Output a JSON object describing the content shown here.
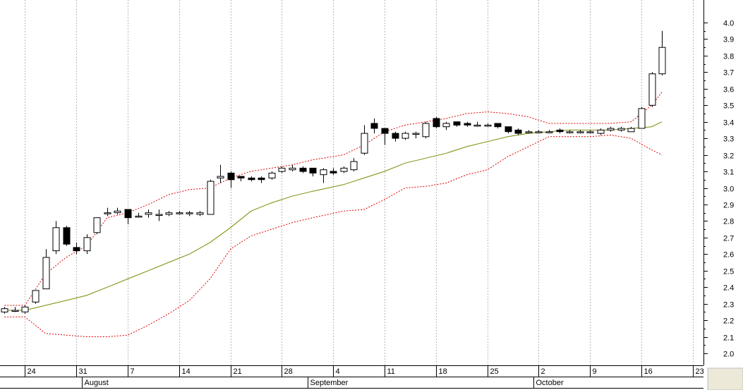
{
  "chart_data": {
    "type": "candlestick",
    "title": "",
    "xlabel": "",
    "ylabel": "",
    "ylim": [
      1.9,
      4.07
    ],
    "y_ticks": [
      "4.0",
      "3.9",
      "3.8",
      "3.7",
      "3.6",
      "3.5",
      "3.4",
      "3.3",
      "3.2",
      "3.1",
      "3.0",
      "2.9",
      "2.8",
      "2.7",
      "2.6",
      "2.5",
      "2.4",
      "2.3",
      "2.2",
      "2.1",
      "2.0"
    ],
    "x_day_labels": [
      "24",
      "31",
      "7",
      "14",
      "21",
      "28",
      "4",
      "11",
      "18",
      "25",
      "2",
      "9",
      "16",
      "23"
    ],
    "x_month_labels": [
      "August",
      "September",
      "October"
    ],
    "grid": true,
    "colors": {
      "candle_border": "#000000",
      "bollinger": "#e00000",
      "moving_average": "#7a8a00",
      "grid": "#b8b8b8",
      "axis_panel": "#ece9d8"
    },
    "candles": [
      {
        "date": "Jul 22",
        "o": 2.25,
        "h": 2.28,
        "l": 2.24,
        "c": 2.27
      },
      {
        "date": "Jul 23",
        "o": 2.26,
        "h": 2.28,
        "l": 2.25,
        "c": 2.26
      },
      {
        "date": "Jul 24",
        "o": 2.25,
        "h": 2.29,
        "l": 2.24,
        "c": 2.28
      },
      {
        "date": "Jul 25",
        "o": 2.31,
        "h": 2.38,
        "l": 2.3,
        "c": 2.38
      },
      {
        "date": "Jul 28",
        "o": 2.39,
        "h": 2.63,
        "l": 2.39,
        "c": 2.58
      },
      {
        "date": "Jul 29",
        "o": 2.62,
        "h": 2.8,
        "l": 2.6,
        "c": 2.76
      },
      {
        "date": "Jul 30",
        "o": 2.76,
        "h": 2.77,
        "l": 2.65,
        "c": 2.66
      },
      {
        "date": "Jul 31",
        "o": 2.64,
        "h": 2.67,
        "l": 2.6,
        "c": 2.62
      },
      {
        "date": "Aug 1",
        "o": 2.62,
        "h": 2.72,
        "l": 2.6,
        "c": 2.7
      },
      {
        "date": "Aug 4",
        "o": 2.73,
        "h": 2.82,
        "l": 2.72,
        "c": 2.82
      },
      {
        "date": "Aug 5",
        "o": 2.85,
        "h": 2.88,
        "l": 2.83,
        "c": 2.85
      },
      {
        "date": "Aug 6",
        "o": 2.85,
        "h": 2.88,
        "l": 2.84,
        "c": 2.86
      },
      {
        "date": "Aug 7",
        "o": 2.87,
        "h": 2.87,
        "l": 2.78,
        "c": 2.82
      },
      {
        "date": "Aug 8",
        "o": 2.83,
        "h": 2.85,
        "l": 2.82,
        "c": 2.83
      },
      {
        "date": "Aug 11",
        "o": 2.84,
        "h": 2.87,
        "l": 2.82,
        "c": 2.85
      },
      {
        "date": "Aug 12",
        "o": 2.84,
        "h": 2.87,
        "l": 2.8,
        "c": 2.84
      },
      {
        "date": "Aug 13",
        "o": 2.84,
        "h": 2.86,
        "l": 2.83,
        "c": 2.85
      },
      {
        "date": "Aug 14",
        "o": 2.85,
        "h": 2.86,
        "l": 2.84,
        "c": 2.85
      },
      {
        "date": "Aug 15",
        "o": 2.85,
        "h": 2.86,
        "l": 2.83,
        "c": 2.85
      },
      {
        "date": "Aug 18",
        "o": 2.84,
        "h": 2.86,
        "l": 2.83,
        "c": 2.85
      },
      {
        "date": "Aug 19",
        "o": 2.84,
        "h": 3.05,
        "l": 2.84,
        "c": 3.04
      },
      {
        "date": "Aug 20",
        "o": 3.06,
        "h": 3.14,
        "l": 3.03,
        "c": 3.07
      },
      {
        "date": "Aug 21",
        "o": 3.09,
        "h": 3.1,
        "l": 3.0,
        "c": 3.05
      },
      {
        "date": "Aug 22",
        "o": 3.07,
        "h": 3.07,
        "l": 3.04,
        "c": 3.06
      },
      {
        "date": "Aug 25",
        "o": 3.06,
        "h": 3.07,
        "l": 3.04,
        "c": 3.05
      },
      {
        "date": "Aug 26",
        "o": 3.06,
        "h": 3.07,
        "l": 3.03,
        "c": 3.05
      },
      {
        "date": "Aug 27",
        "o": 3.06,
        "h": 3.1,
        "l": 3.05,
        "c": 3.09
      },
      {
        "date": "Aug 28",
        "o": 3.1,
        "h": 3.13,
        "l": 3.09,
        "c": 3.12
      },
      {
        "date": "Aug 29",
        "o": 3.11,
        "h": 3.14,
        "l": 3.1,
        "c": 3.12
      },
      {
        "date": "Sep 1",
        "o": 3.12,
        "h": 3.13,
        "l": 3.09,
        "c": 3.1
      },
      {
        "date": "Sep 2",
        "o": 3.12,
        "h": 3.12,
        "l": 3.07,
        "c": 3.09
      },
      {
        "date": "Sep 3",
        "o": 3.08,
        "h": 3.12,
        "l": 3.03,
        "c": 3.11
      },
      {
        "date": "Sep 4",
        "o": 3.1,
        "h": 3.12,
        "l": 3.08,
        "c": 3.09
      },
      {
        "date": "Sep 5",
        "o": 3.1,
        "h": 3.13,
        "l": 3.09,
        "c": 3.12
      },
      {
        "date": "Sep 8",
        "o": 3.11,
        "h": 3.18,
        "l": 3.1,
        "c": 3.16
      },
      {
        "date": "Sep 9",
        "o": 3.21,
        "h": 3.38,
        "l": 3.2,
        "c": 3.33
      },
      {
        "date": "Sep 10",
        "o": 3.39,
        "h": 3.42,
        "l": 3.33,
        "c": 3.36
      },
      {
        "date": "Sep 11",
        "o": 3.36,
        "h": 3.36,
        "l": 3.26,
        "c": 3.33
      },
      {
        "date": "Sep 12",
        "o": 3.33,
        "h": 3.34,
        "l": 3.28,
        "c": 3.3
      },
      {
        "date": "Sep 15",
        "o": 3.3,
        "h": 3.34,
        "l": 3.29,
        "c": 3.33
      },
      {
        "date": "Sep 16",
        "o": 3.33,
        "h": 3.34,
        "l": 3.3,
        "c": 3.33
      },
      {
        "date": "Sep 17",
        "o": 3.31,
        "h": 3.4,
        "l": 3.3,
        "c": 3.39
      },
      {
        "date": "Sep 18",
        "o": 3.42,
        "h": 3.43,
        "l": 3.36,
        "c": 3.37
      },
      {
        "date": "Sep 19",
        "o": 3.37,
        "h": 3.4,
        "l": 3.35,
        "c": 3.39
      },
      {
        "date": "Sep 22",
        "o": 3.4,
        "h": 3.4,
        "l": 3.37,
        "c": 3.38
      },
      {
        "date": "Sep 23",
        "o": 3.39,
        "h": 3.4,
        "l": 3.37,
        "c": 3.38
      },
      {
        "date": "Sep 24",
        "o": 3.38,
        "h": 3.4,
        "l": 3.37,
        "c": 3.38
      },
      {
        "date": "Sep 25",
        "o": 3.38,
        "h": 3.39,
        "l": 3.37,
        "c": 3.38
      },
      {
        "date": "Sep 26",
        "o": 3.39,
        "h": 3.39,
        "l": 3.36,
        "c": 3.37
      },
      {
        "date": "Sep 29",
        "o": 3.37,
        "h": 3.37,
        "l": 3.33,
        "c": 3.34
      },
      {
        "date": "Sep 30",
        "o": 3.35,
        "h": 3.36,
        "l": 3.32,
        "c": 3.33
      },
      {
        "date": "Oct 1",
        "o": 3.34,
        "h": 3.35,
        "l": 3.33,
        "c": 3.34
      },
      {
        "date": "Oct 2",
        "o": 3.34,
        "h": 3.35,
        "l": 3.33,
        "c": 3.34
      },
      {
        "date": "Oct 3",
        "o": 3.34,
        "h": 3.35,
        "l": 3.33,
        "c": 3.34
      },
      {
        "date": "Oct 6",
        "o": 3.35,
        "h": 3.36,
        "l": 3.33,
        "c": 3.34
      },
      {
        "date": "Oct 7",
        "o": 3.34,
        "h": 3.35,
        "l": 3.33,
        "c": 3.34
      },
      {
        "date": "Oct 8",
        "o": 3.34,
        "h": 3.35,
        "l": 3.33,
        "c": 3.34
      },
      {
        "date": "Oct 9",
        "o": 3.34,
        "h": 3.35,
        "l": 3.33,
        "c": 3.34
      },
      {
        "date": "Oct 10",
        "o": 3.33,
        "h": 3.36,
        "l": 3.32,
        "c": 3.35
      },
      {
        "date": "Oct 13",
        "o": 3.35,
        "h": 3.37,
        "l": 3.34,
        "c": 3.36
      },
      {
        "date": "Oct 14",
        "o": 3.35,
        "h": 3.37,
        "l": 3.34,
        "c": 3.36
      },
      {
        "date": "Oct 15",
        "o": 3.34,
        "h": 3.37,
        "l": 3.34,
        "c": 3.36
      },
      {
        "date": "Oct 16",
        "o": 3.36,
        "h": 3.49,
        "l": 3.36,
        "c": 3.48
      },
      {
        "date": "Oct 17",
        "o": 3.5,
        "h": 3.7,
        "l": 3.49,
        "c": 3.69
      },
      {
        "date": "Oct 20",
        "o": 3.69,
        "h": 3.95,
        "l": 3.68,
        "c": 3.85
      }
    ],
    "moving_average": [
      {
        "date": "Jul 22",
        "v": 2.26
      },
      {
        "date": "Jul 24",
        "v": 2.26
      },
      {
        "date": "Jul 28",
        "v": 2.29
      },
      {
        "date": "Jul 30",
        "v": 2.32
      },
      {
        "date": "Aug 1",
        "v": 2.35
      },
      {
        "date": "Aug 5",
        "v": 2.4
      },
      {
        "date": "Aug 7",
        "v": 2.45
      },
      {
        "date": "Aug 11",
        "v": 2.5
      },
      {
        "date": "Aug 13",
        "v": 2.55
      },
      {
        "date": "Aug 15",
        "v": 2.6
      },
      {
        "date": "Aug 19",
        "v": 2.67
      },
      {
        "date": "Aug 21",
        "v": 2.76
      },
      {
        "date": "Aug 25",
        "v": 2.86
      },
      {
        "date": "Aug 27",
        "v": 2.91
      },
      {
        "date": "Aug 29",
        "v": 2.95
      },
      {
        "date": "Sep 2",
        "v": 2.98
      },
      {
        "date": "Sep 5",
        "v": 3.02
      },
      {
        "date": "Sep 9",
        "v": 3.06
      },
      {
        "date": "Sep 11",
        "v": 3.1
      },
      {
        "date": "Sep 15",
        "v": 3.15
      },
      {
        "date": "Sep 17",
        "v": 3.18
      },
      {
        "date": "Sep 19",
        "v": 3.21
      },
      {
        "date": "Sep 23",
        "v": 3.25
      },
      {
        "date": "Sep 25",
        "v": 3.28
      },
      {
        "date": "Sep 29",
        "v": 3.31
      },
      {
        "date": "Oct 1",
        "v": 3.33
      },
      {
        "date": "Oct 3",
        "v": 3.34
      },
      {
        "date": "Oct 7",
        "v": 3.35
      },
      {
        "date": "Oct 9",
        "v": 3.35
      },
      {
        "date": "Oct 13",
        "v": 3.35
      },
      {
        "date": "Oct 15",
        "v": 3.36
      },
      {
        "date": "Oct 17",
        "v": 3.37
      },
      {
        "date": "Oct 20",
        "v": 3.4
      }
    ],
    "bollinger_upper": [
      {
        "date": "Jul 22",
        "v": 2.29
      },
      {
        "date": "Jul 24",
        "v": 2.29
      },
      {
        "date": "Jul 28",
        "v": 2.48
      },
      {
        "date": "Jul 30",
        "v": 2.58
      },
      {
        "date": "Aug 1",
        "v": 2.65
      },
      {
        "date": "Aug 5",
        "v": 2.82
      },
      {
        "date": "Aug 7",
        "v": 2.85
      },
      {
        "date": "Aug 11",
        "v": 2.9
      },
      {
        "date": "Aug 13",
        "v": 2.96
      },
      {
        "date": "Aug 15",
        "v": 2.99
      },
      {
        "date": "Aug 19",
        "v": 3.0
      },
      {
        "date": "Aug 21",
        "v": 3.06
      },
      {
        "date": "Aug 25",
        "v": 3.1
      },
      {
        "date": "Aug 27",
        "v": 3.12
      },
      {
        "date": "Aug 29",
        "v": 3.14
      },
      {
        "date": "Sep 2",
        "v": 3.17
      },
      {
        "date": "Sep 5",
        "v": 3.2
      },
      {
        "date": "Sep 9",
        "v": 3.26
      },
      {
        "date": "Sep 11",
        "v": 3.34
      },
      {
        "date": "Sep 15",
        "v": 3.38
      },
      {
        "date": "Sep 17",
        "v": 3.4
      },
      {
        "date": "Sep 19",
        "v": 3.42
      },
      {
        "date": "Sep 23",
        "v": 3.45
      },
      {
        "date": "Sep 25",
        "v": 3.46
      },
      {
        "date": "Sep 29",
        "v": 3.45
      },
      {
        "date": "Oct 1",
        "v": 3.43
      },
      {
        "date": "Oct 3",
        "v": 3.39
      },
      {
        "date": "Oct 7",
        "v": 3.39
      },
      {
        "date": "Oct 9",
        "v": 3.39
      },
      {
        "date": "Oct 13",
        "v": 3.39
      },
      {
        "date": "Oct 15",
        "v": 3.4
      },
      {
        "date": "Oct 17",
        "v": 3.5
      },
      {
        "date": "Oct 20",
        "v": 3.58
      }
    ],
    "bollinger_lower": [
      {
        "date": "Jul 22",
        "v": 2.22
      },
      {
        "date": "Jul 24",
        "v": 2.22
      },
      {
        "date": "Jul 28",
        "v": 2.12
      },
      {
        "date": "Jul 30",
        "v": 2.11
      },
      {
        "date": "Aug 1",
        "v": 2.1
      },
      {
        "date": "Aug 5",
        "v": 2.1
      },
      {
        "date": "Aug 7",
        "v": 2.11
      },
      {
        "date": "Aug 11",
        "v": 2.17
      },
      {
        "date": "Aug 13",
        "v": 2.24
      },
      {
        "date": "Aug 15",
        "v": 2.32
      },
      {
        "date": "Aug 19",
        "v": 2.45
      },
      {
        "date": "Aug 21",
        "v": 2.63
      },
      {
        "date": "Aug 25",
        "v": 2.71
      },
      {
        "date": "Aug 27",
        "v": 2.75
      },
      {
        "date": "Aug 29",
        "v": 2.79
      },
      {
        "date": "Sep 2",
        "v": 2.82
      },
      {
        "date": "Sep 5",
        "v": 2.86
      },
      {
        "date": "Sep 9",
        "v": 2.87
      },
      {
        "date": "Sep 11",
        "v": 2.93
      },
      {
        "date": "Sep 15",
        "v": 3.0
      },
      {
        "date": "Sep 17",
        "v": 3.01
      },
      {
        "date": "Sep 19",
        "v": 3.03
      },
      {
        "date": "Sep 23",
        "v": 3.08
      },
      {
        "date": "Sep 25",
        "v": 3.11
      },
      {
        "date": "Sep 29",
        "v": 3.19
      },
      {
        "date": "Oct 1",
        "v": 3.25
      },
      {
        "date": "Oct 3",
        "v": 3.31
      },
      {
        "date": "Oct 7",
        "v": 3.31
      },
      {
        "date": "Oct 9",
        "v": 3.31
      },
      {
        "date": "Oct 13",
        "v": 3.32
      },
      {
        "date": "Oct 15",
        "v": 3.3
      },
      {
        "date": "Oct 17",
        "v": 3.23
      },
      {
        "date": "Oct 20",
        "v": 3.2
      }
    ]
  }
}
